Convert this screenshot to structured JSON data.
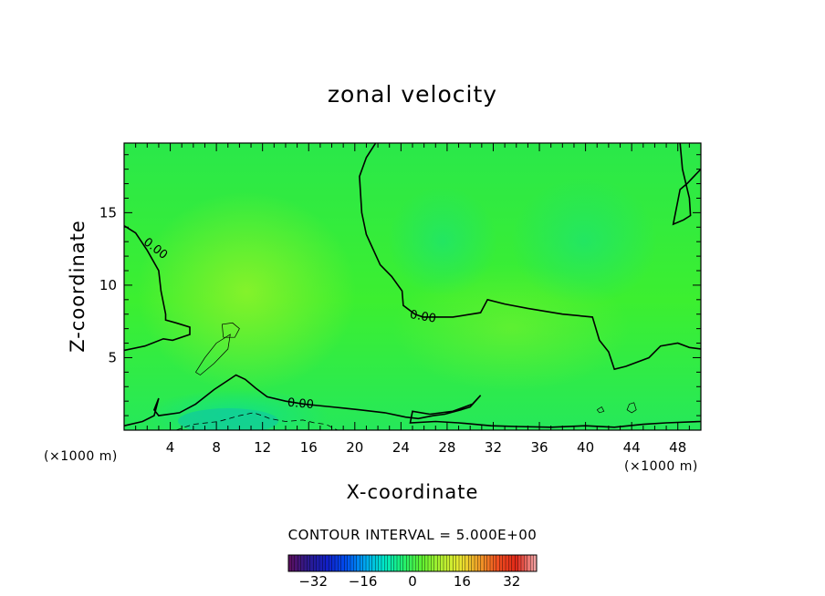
{
  "chart_data": {
    "type": "heatmap",
    "title": "zonal velocity",
    "xlabel": "X-coordinate",
    "ylabel": "Z-coordinate",
    "x_unit": "(×1000 m)",
    "z_unit": "(×1000 m)",
    "xlim": [
      0,
      50
    ],
    "ylim": [
      0,
      19.8
    ],
    "x_ticks": [
      4,
      8,
      12,
      16,
      20,
      24,
      28,
      32,
      36,
      40,
      44,
      48
    ],
    "y_ticks": [
      5,
      10,
      15
    ],
    "contour_interval_text": "CONTOUR INTERVAL = 5.000E+00",
    "contour_label": "0.00",
    "colorbar": {
      "range": [
        -40,
        40
      ],
      "ticks": [
        -32,
        -16,
        0,
        16,
        32
      ],
      "colors": [
        "#5a1060",
        "#2a1a90",
        "#1020c8",
        "#0050f0",
        "#00a8f0",
        "#00e8c8",
        "#20f070",
        "#60f030",
        "#b0f030",
        "#e8e830",
        "#f0a028",
        "#f05020",
        "#e02818",
        "#f0a0a0"
      ]
    },
    "field_color_zero": "#22ee44",
    "zero_contours": [
      [
        [
          0,
          14.1
        ],
        [
          1,
          13.6
        ],
        [
          2,
          12.4
        ],
        [
          3,
          11.0
        ],
        [
          3.2,
          9.6
        ],
        [
          3.6,
          8.0
        ],
        [
          3.6,
          7.6
        ],
        [
          4.5,
          7.4
        ],
        [
          5.7,
          7.1
        ],
        [
          5.7,
          6.6
        ],
        [
          4.2,
          6.2
        ],
        [
          3.4,
          6.3
        ],
        [
          1.8,
          5.8
        ],
        [
          0,
          5.5
        ]
      ],
      [
        [
          21.8,
          19.8
        ],
        [
          21.0,
          18.8
        ],
        [
          20.4,
          17.5
        ],
        [
          20.6,
          15.0
        ],
        [
          21.0,
          13.5
        ],
        [
          22.2,
          11.4
        ],
        [
          23.2,
          10.6
        ],
        [
          24.1,
          9.6
        ],
        [
          24.2,
          8.6
        ],
        [
          25.2,
          8.0
        ],
        [
          25.9,
          7.8
        ],
        [
          28.5,
          7.8
        ],
        [
          30.9,
          8.1
        ],
        [
          31.5,
          9.0
        ],
        [
          33.0,
          8.7
        ],
        [
          35.0,
          8.4
        ],
        [
          38.0,
          8.0
        ],
        [
          40.6,
          7.8
        ],
        [
          41.2,
          6.2
        ],
        [
          42.0,
          5.4
        ],
        [
          42.5,
          4.2
        ],
        [
          43.5,
          4.4
        ],
        [
          45.5,
          5.0
        ],
        [
          46.5,
          5.8
        ],
        [
          48.0,
          6.0
        ],
        [
          49.0,
          5.7
        ],
        [
          50,
          5.6
        ]
      ],
      [
        [
          48.2,
          19.8
        ],
        [
          48.4,
          18.0
        ],
        [
          49.0,
          16.0
        ],
        [
          49.1,
          14.8
        ],
        [
          48.5,
          14.5
        ],
        [
          47.6,
          14.2
        ],
        [
          48.2,
          16.6
        ],
        [
          48.8,
          17.0
        ],
        [
          50,
          18.0
        ]
      ],
      [
        [
          0,
          0.3
        ],
        [
          1.6,
          0.6
        ],
        [
          2.6,
          1.0
        ],
        [
          3.0,
          2.2
        ],
        [
          2.6,
          1.4
        ],
        [
          3.0,
          1.0
        ],
        [
          4.8,
          1.2
        ],
        [
          6.2,
          1.8
        ],
        [
          7.8,
          2.8
        ],
        [
          9.7,
          3.8
        ],
        [
          10.5,
          3.5
        ],
        [
          11.4,
          2.9
        ],
        [
          12.4,
          2.3
        ],
        [
          14.0,
          2.0
        ],
        [
          15.6,
          1.8
        ],
        [
          16.8,
          1.7
        ],
        [
          18.0,
          1.6
        ],
        [
          19.2,
          1.5
        ],
        [
          20.4,
          1.4
        ],
        [
          22.6,
          1.2
        ],
        [
          24.4,
          0.9
        ],
        [
          25.5,
          0.8
        ],
        [
          26.8,
          1.0
        ],
        [
          27.8,
          1.1
        ],
        [
          29.2,
          1.4
        ],
        [
          30.0,
          1.6
        ],
        [
          30.9,
          2.4
        ],
        [
          30.2,
          1.8
        ],
        [
          28.5,
          1.3
        ],
        [
          26.5,
          1.1
        ],
        [
          25.0,
          1.3
        ],
        [
          24.8,
          0.5
        ],
        [
          27.0,
          0.6
        ],
        [
          29.0,
          0.5
        ],
        [
          31.8,
          0.3
        ],
        [
          34.0,
          0.25
        ],
        [
          37.0,
          0.2
        ],
        [
          40.0,
          0.3
        ],
        [
          42.5,
          0.2
        ],
        [
          45.0,
          0.4
        ],
        [
          47.0,
          0.5
        ],
        [
          50,
          0.6
        ]
      ]
    ],
    "minor_contours": [
      [
        [
          6.2,
          4.0
        ],
        [
          7.0,
          5.0
        ],
        [
          8.0,
          6.0
        ],
        [
          9.2,
          6.6
        ],
        [
          9.0,
          5.6
        ],
        [
          7.8,
          4.6
        ],
        [
          6.6,
          3.8
        ],
        [
          6.2,
          4.0
        ]
      ],
      [
        [
          8.6,
          6.4
        ],
        [
          8.5,
          7.3
        ],
        [
          9.4,
          7.4
        ],
        [
          10.0,
          7.0
        ],
        [
          9.6,
          6.4
        ],
        [
          8.6,
          6.4
        ]
      ],
      [
        [
          43.8,
          1.8
        ],
        [
          44.2,
          1.9
        ],
        [
          44.4,
          1.4
        ],
        [
          44.0,
          1.2
        ],
        [
          43.6,
          1.4
        ],
        [
          43.8,
          1.8
        ]
      ],
      [
        [
          41.0,
          1.4
        ],
        [
          41.4,
          1.6
        ],
        [
          41.6,
          1.3
        ],
        [
          41.2,
          1.2
        ],
        [
          41.0,
          1.4
        ]
      ]
    ],
    "negative_contours": [
      [
        [
          4.5,
          0
        ],
        [
          6.0,
          0.4
        ],
        [
          8.2,
          0.6
        ],
        [
          10.0,
          1.0
        ],
        [
          11.2,
          1.2
        ],
        [
          12.0,
          1.0
        ],
        [
          12.6,
          0.8
        ],
        [
          14.0,
          0.6
        ],
        [
          15.5,
          0.7
        ],
        [
          16.5,
          0.5
        ],
        [
          17.5,
          0.4
        ],
        [
          18.5,
          0
        ]
      ]
    ]
  }
}
